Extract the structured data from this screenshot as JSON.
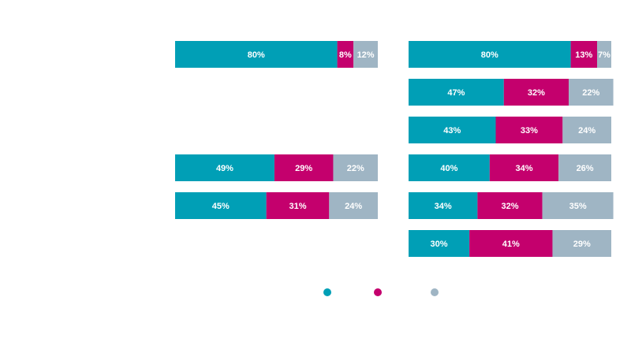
{
  "chart_data": [
    {
      "type": "bar",
      "orientation": "horizontal",
      "stacked": true,
      "normalized": true,
      "rows": 6,
      "xlim": [
        0,
        100
      ],
      "series_colors": [
        "#009fb6",
        "#c4006d",
        "#9fb5c4"
      ],
      "series": [
        {
          "values": [
            80,
            null,
            null,
            49,
            45,
            null
          ],
          "labels": [
            "80%",
            null,
            null,
            "49%",
            "45%",
            null
          ]
        },
        {
          "values": [
            8,
            null,
            null,
            29,
            31,
            null
          ],
          "labels": [
            "8%",
            null,
            null,
            "29%",
            "31%",
            null
          ]
        },
        {
          "values": [
            12,
            null,
            null,
            22,
            24,
            null
          ],
          "labels": [
            "12%",
            null,
            null,
            "22%",
            "24%",
            null
          ]
        }
      ]
    },
    {
      "type": "bar",
      "orientation": "horizontal",
      "stacked": true,
      "normalized": true,
      "rows": 6,
      "xlim": [
        0,
        100
      ],
      "series_colors": [
        "#009fb6",
        "#c4006d",
        "#9fb5c4"
      ],
      "series": [
        {
          "values": [
            80,
            47,
            43,
            40,
            34,
            30
          ],
          "labels": [
            "80%",
            "47%",
            "43%",
            "40%",
            "34%",
            "30%"
          ]
        },
        {
          "values": [
            13,
            32,
            33,
            34,
            32,
            41
          ],
          "labels": [
            "13%",
            "32%",
            "33%",
            "34%",
            "32%",
            "41%"
          ]
        },
        {
          "values": [
            7,
            22,
            24,
            26,
            35,
            29
          ],
          "labels": [
            "7%",
            "22%",
            "24%",
            "26%",
            "35%",
            "29%"
          ]
        }
      ]
    }
  ],
  "legend": {
    "placement": "bottom-center",
    "colors": [
      "#009fb6",
      "#c4006d",
      "#9fb5c4"
    ]
  }
}
